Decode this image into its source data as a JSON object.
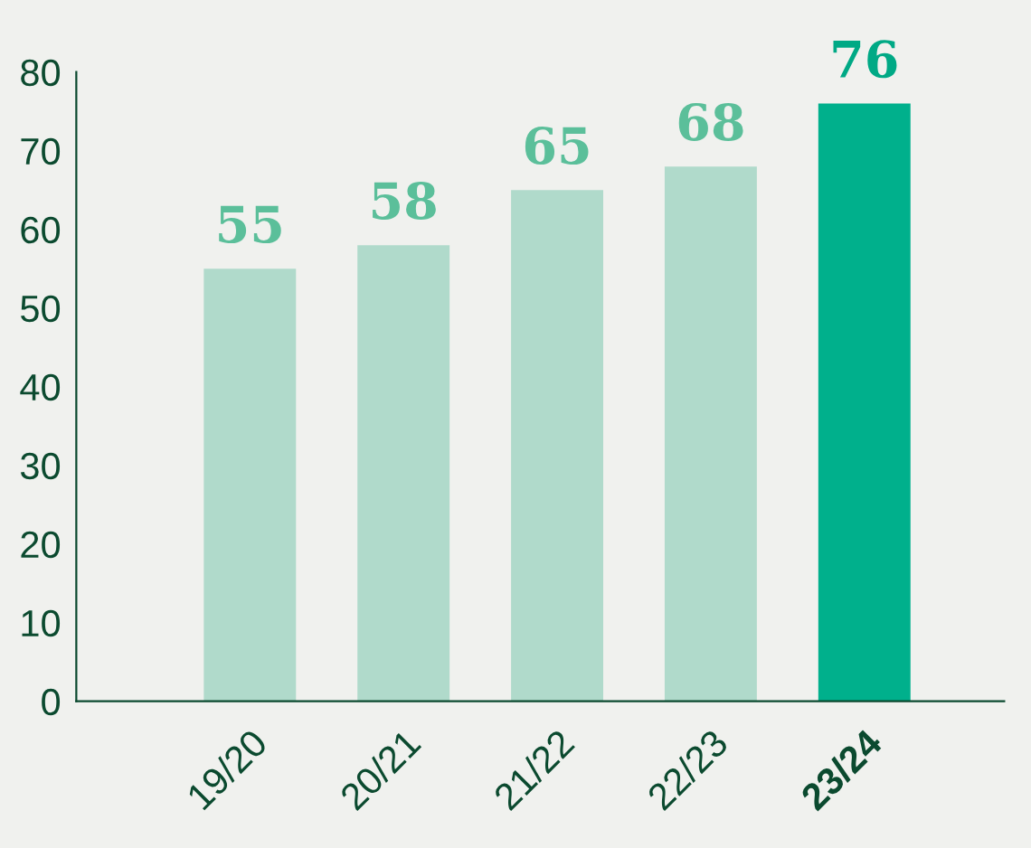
{
  "chart_data": {
    "type": "bar",
    "categories": [
      "19/20",
      "20/21",
      "21/22",
      "22/23",
      "23/24"
    ],
    "values": [
      55,
      58,
      65,
      68,
      76
    ],
    "colors": [
      "#b0dacb",
      "#b0dacb",
      "#b0dacb",
      "#b0dacb",
      "#00b08c"
    ],
    "ylim": [
      0,
      80
    ],
    "yticks": [
      0,
      10,
      20,
      30,
      40,
      50,
      60,
      70,
      80
    ],
    "data_labels": true,
    "grid": false,
    "legend": false
  }
}
